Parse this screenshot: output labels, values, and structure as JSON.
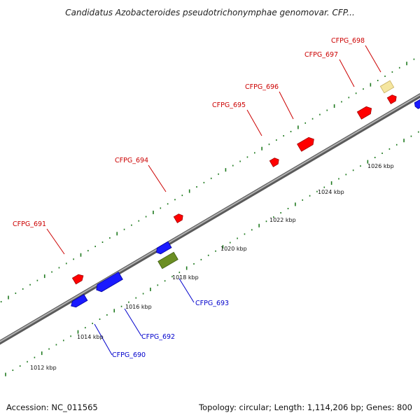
{
  "title": "Candidatus Azobacteroides pseudotrichonymphae genomovar. CFP...",
  "footer": {
    "accession": "Accession: NC_011565",
    "summary": "Topology: circular; Length: 1,114,206 bp; Genes: 800"
  },
  "colors": {
    "forward_gene": "#ff0000",
    "reverse_gene": "#1a1aff",
    "rna_gene": "#6b8e23",
    "highlight_gene": "#f5e6a0",
    "forward_label": "#cc0000",
    "reverse_label": "#0000cc",
    "backbone": "#808080",
    "tick": "#1f7a1f"
  },
  "scale": {
    "labels": [
      "1012 kbp",
      "1014 kbp",
      "1016 kbp",
      "1018 kbp",
      "1020 kbp",
      "1022 kbp",
      "1024 kbp",
      "1026 kbp"
    ]
  },
  "genes": [
    {
      "label": "CFPG_690",
      "strand": "reverse"
    },
    {
      "label": "CFPG_691",
      "strand": "forward"
    },
    {
      "label": "CFPG_692",
      "strand": "reverse"
    },
    {
      "label": "CFPG_693",
      "strand": "reverse",
      "type": "rna"
    },
    {
      "label": "CFPG_694",
      "strand": "forward"
    },
    {
      "label": "CFPG_695",
      "strand": "forward"
    },
    {
      "label": "CFPG_696",
      "strand": "forward"
    },
    {
      "label": "CFPG_697",
      "strand": "forward"
    },
    {
      "label": "CFPG_698",
      "strand": "forward",
      "highlighted": true
    }
  ]
}
